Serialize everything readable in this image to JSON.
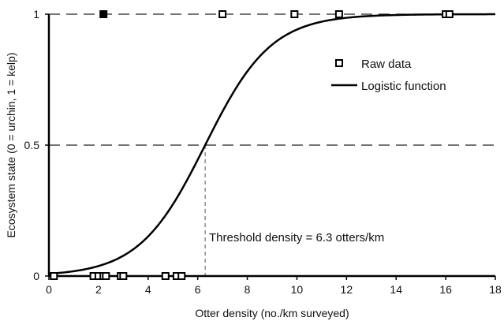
{
  "chart_data": {
    "type": "scatter",
    "title": "",
    "xlabel": "Otter density (no./km surveyed)",
    "ylabel": "Ecosystem state (0 = urchin, 1 = kelp)",
    "xlim": [
      0,
      18
    ],
    "ylim": [
      0,
      1
    ],
    "x_ticks": [
      0,
      2,
      4,
      6,
      8,
      10,
      12,
      14,
      16,
      18
    ],
    "y_ticks": [
      0,
      0.5,
      1
    ],
    "y_tick_labels": [
      "0",
      "0.5",
      "1"
    ],
    "grid": "dashed horizontal at 0.5 and 1",
    "legend_position": "top-right",
    "series": [
      {
        "name": "Raw data",
        "kind": "scatter",
        "color": "#000000",
        "points": [
          {
            "x": 0.2,
            "y": 0
          },
          {
            "x": 1.8,
            "y": 0
          },
          {
            "x": 2.0,
            "y": 0
          },
          {
            "x": 2.2,
            "y": 0
          },
          {
            "x": 2.3,
            "y": 0
          },
          {
            "x": 2.9,
            "y": 0
          },
          {
            "x": 3.0,
            "y": 0
          },
          {
            "x": 4.7,
            "y": 0
          },
          {
            "x": 5.15,
            "y": 0
          },
          {
            "x": 5.35,
            "y": 0
          },
          {
            "x": 2.2,
            "y": 1,
            "filled": true
          },
          {
            "x": 7.0,
            "y": 1
          },
          {
            "x": 9.9,
            "y": 1
          },
          {
            "x": 11.7,
            "y": 1
          },
          {
            "x": 16.0,
            "y": 1
          },
          {
            "x": 16.15,
            "y": 1
          }
        ]
      },
      {
        "name": "Logistic function",
        "kind": "line",
        "color": "#000000",
        "threshold": 6.3,
        "slope": 0.75
      }
    ],
    "annotations": [
      {
        "text": "Threshold density = 6.3 otters/km",
        "x": 6.3,
        "y": 0.5
      }
    ]
  }
}
